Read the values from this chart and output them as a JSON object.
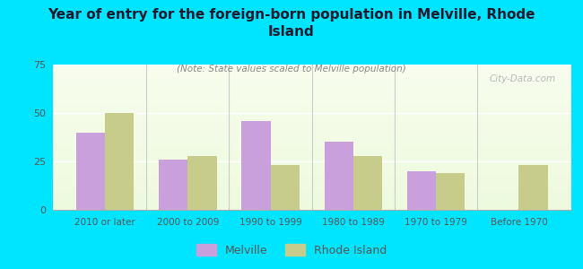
{
  "title": "Year of entry for the foreign-born population in Melville, Rhode\nIsland",
  "subtitle": "(Note: State values scaled to Melville population)",
  "categories": [
    "2010 or later",
    "2000 to 2009",
    "1990 to 1999",
    "1980 to 1989",
    "1970 to 1979",
    "Before 1970"
  ],
  "melville_values": [
    40,
    26,
    46,
    35,
    20,
    0
  ],
  "rhode_island_values": [
    50,
    28,
    23,
    28,
    19,
    23
  ],
  "melville_color": "#c9a0dc",
  "rhode_island_color": "#c8cc8a",
  "background_color": "#00e5ff",
  "ylim": [
    0,
    75
  ],
  "yticks": [
    0,
    25,
    50,
    75
  ],
  "bar_width": 0.35,
  "legend_melville": "Melville",
  "legend_rhode_island": "Rhode Island",
  "watermark": "City-Data.com",
  "divider_color": "#cccccc",
  "title_color": "#1a1a2e",
  "subtitle_color": "#888888",
  "tick_color": "#555555"
}
